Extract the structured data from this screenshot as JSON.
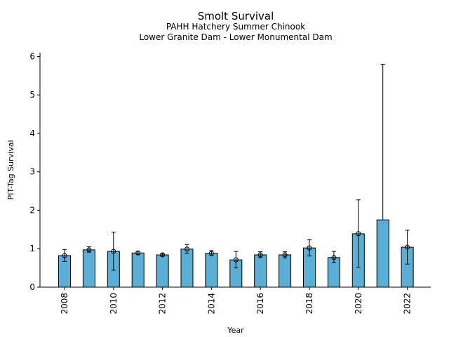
{
  "chart_data": {
    "type": "bar",
    "title": "Smolt Survival",
    "subtitle_line1": "PAHH Hatchery Summer Chinook",
    "subtitle_line2": "Lower Granite Dam - Lower Monumental Dam",
    "xlabel": "Year",
    "ylabel": "PIT-Tag Survival",
    "ylim": [
      0,
      6.1
    ],
    "yticks": [
      0,
      1,
      2,
      3,
      4,
      5,
      6
    ],
    "xtick_labels": [
      "2008",
      "2010",
      "2012",
      "2014",
      "2016",
      "2018",
      "2020",
      "2022"
    ],
    "categories": [
      "2008",
      "2009",
      "2010",
      "2011",
      "2012",
      "2013",
      "2014",
      "2015",
      "2016",
      "2017",
      "2018",
      "2019",
      "2020",
      "2021",
      "2022"
    ],
    "values": [
      0.82,
      0.97,
      0.93,
      0.89,
      0.84,
      0.99,
      0.88,
      0.71,
      0.84,
      0.84,
      1.02,
      0.77,
      1.39,
      1.75,
      1.04
    ],
    "error_lower": [
      0.67,
      0.91,
      0.44,
      0.85,
      0.81,
      0.88,
      0.82,
      0.5,
      0.77,
      0.76,
      0.81,
      0.64,
      0.52,
      null,
      0.6
    ],
    "error_upper": [
      0.98,
      1.05,
      1.43,
      0.93,
      0.87,
      1.11,
      0.95,
      0.93,
      0.92,
      0.92,
      1.23,
      0.93,
      2.27,
      5.8,
      1.48
    ],
    "grid": false,
    "colors": {
      "bar_fill": "#5aafd6",
      "bar_edge": "#000000",
      "error_bar": "#000000"
    }
  }
}
